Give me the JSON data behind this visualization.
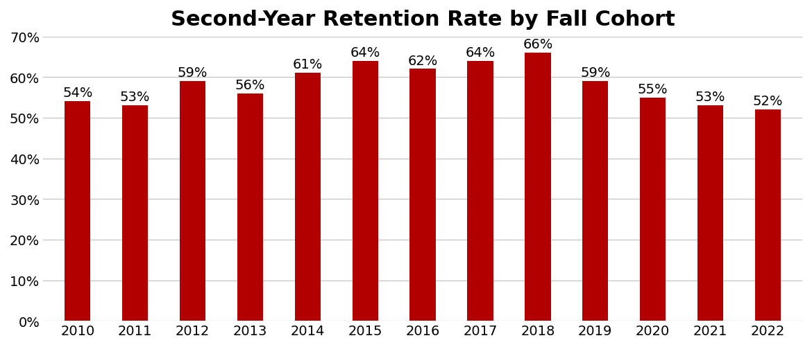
{
  "title": "Second-Year Retention Rate by Fall Cohort",
  "categories": [
    "2010",
    "2011",
    "2012",
    "2013",
    "2014",
    "2015",
    "2016",
    "2017",
    "2018",
    "2019",
    "2020",
    "2021",
    "2022"
  ],
  "values": [
    0.54,
    0.53,
    0.59,
    0.56,
    0.61,
    0.64,
    0.62,
    0.64,
    0.66,
    0.59,
    0.55,
    0.53,
    0.52
  ],
  "labels": [
    "54%",
    "53%",
    "59%",
    "56%",
    "61%",
    "64%",
    "62%",
    "64%",
    "66%",
    "59%",
    "55%",
    "53%",
    "52%"
  ],
  "bar_color": "#b20000",
  "background_color": "#ffffff",
  "title_fontsize": 22,
  "label_fontsize": 14,
  "tick_fontsize": 14,
  "ylim": [
    0,
    0.7
  ],
  "yticks": [
    0.0,
    0.1,
    0.2,
    0.3,
    0.4,
    0.5,
    0.6,
    0.7
  ],
  "grid_color": "#c8c8c8",
  "title_fontweight": "bold",
  "bar_width": 0.45
}
